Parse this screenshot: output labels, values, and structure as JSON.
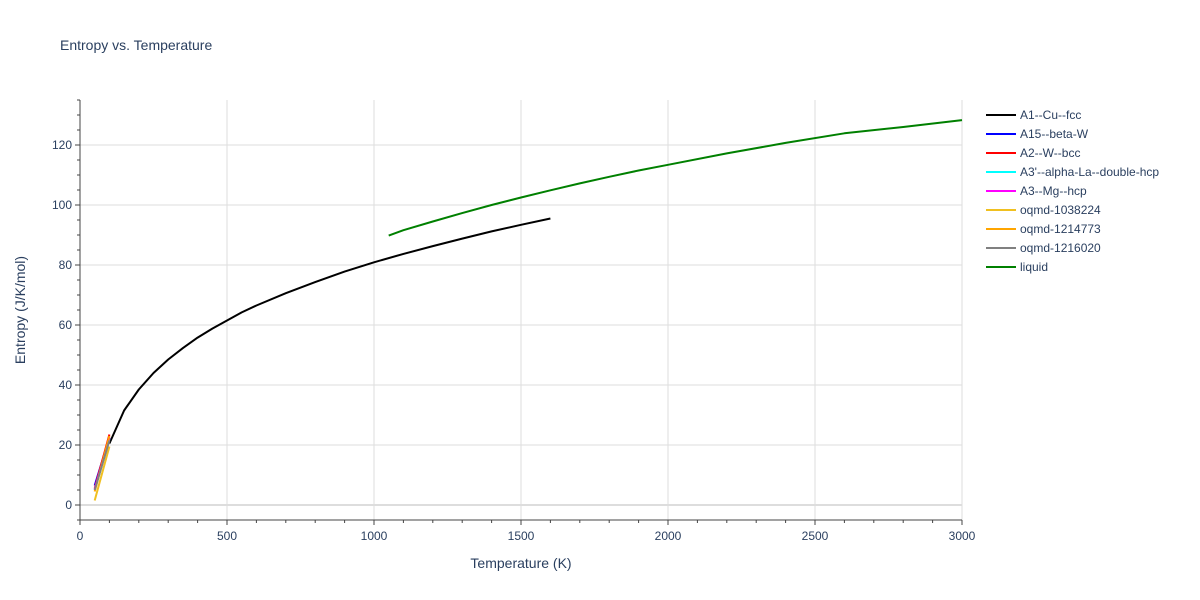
{
  "chart_data": {
    "type": "line",
    "title": "Entropy vs. Temperature",
    "xlabel": "Temperature (K)",
    "ylabel": "Entropy (J/K/mol)",
    "xlim": [
      0,
      3000
    ],
    "ylim": [
      -5,
      135
    ],
    "x_ticks": [
      0,
      500,
      1000,
      1500,
      2000,
      2500,
      3000
    ],
    "y_ticks": [
      0,
      20,
      40,
      60,
      80,
      100,
      120
    ],
    "grid": true,
    "legend_position": "right",
    "series": [
      {
        "name": "A1--Cu--fcc",
        "color": "#000000",
        "x": [
          100,
          150,
          200,
          250,
          300,
          350,
          400,
          450,
          500,
          550,
          600,
          700,
          800,
          900,
          1000,
          1100,
          1200,
          1300,
          1400,
          1500,
          1600
        ],
        "y": [
          20.5,
          31.5,
          38.5,
          44.0,
          48.5,
          52.3,
          55.8,
          58.8,
          61.5,
          64.2,
          66.5,
          70.6,
          74.3,
          77.8,
          80.9,
          83.7,
          86.3,
          88.8,
          91.2,
          93.4,
          95.5
        ]
      },
      {
        "name": "A15--beta-W",
        "color": "#0000ff",
        "x": [
          50,
          100
        ],
        "y": [
          6.5,
          22.5
        ]
      },
      {
        "name": "A2--W--bcc",
        "color": "#ff0000",
        "x": [
          50,
          100
        ],
        "y": [
          5.5,
          23.5
        ]
      },
      {
        "name": "A3'--alpha-La--double-hcp",
        "color": "#00ffff",
        "x": [
          50,
          100
        ],
        "y": [
          5.0,
          22.0
        ]
      },
      {
        "name": "A3--Mg--hcp",
        "color": "#ff00ff",
        "x": [
          50,
          100
        ],
        "y": [
          5.3,
          22.3
        ]
      },
      {
        "name": "oqmd-1038224",
        "color": "#f0c020",
        "x": [
          50,
          100
        ],
        "y": [
          1.5,
          19.5
        ]
      },
      {
        "name": "oqmd-1214773",
        "color": "#ffa500",
        "x": [
          50,
          100
        ],
        "y": [
          4.5,
          23.0
        ]
      },
      {
        "name": "oqmd-1216020",
        "color": "#808080",
        "x": [
          50,
          100
        ],
        "y": [
          5.0,
          21.5
        ]
      },
      {
        "name": "liquid",
        "color": "#008000",
        "x": [
          1050,
          1100,
          1200,
          1300,
          1400,
          1500,
          1600,
          1700,
          1800,
          1900,
          2000,
          2200,
          2400,
          2600,
          2800,
          3000
        ],
        "y": [
          89.8,
          91.6,
          94.5,
          97.3,
          100.0,
          102.5,
          104.9,
          107.2,
          109.4,
          111.5,
          113.4,
          117.2,
          120.7,
          123.9,
          126.0,
          128.3
        ]
      }
    ]
  }
}
